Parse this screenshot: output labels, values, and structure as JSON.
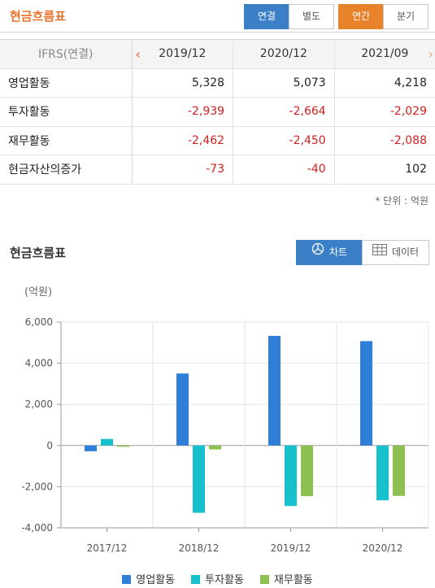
{
  "header": {
    "title": "현금흐름표",
    "consolidation_tabs": [
      {
        "label": "연결",
        "active": true
      },
      {
        "label": "별도",
        "active": false
      }
    ],
    "period_tabs": [
      {
        "label": "연간",
        "active": true
      },
      {
        "label": "분기",
        "active": false
      }
    ]
  },
  "table": {
    "row_header": "IFRS(연결)",
    "columns": [
      "2019/12",
      "2020/12",
      "2021/09"
    ],
    "rows": [
      {
        "label": "영업활동",
        "values": [
          "5,328",
          "5,073",
          "4,218"
        ]
      },
      {
        "label": "투자활동",
        "values": [
          "-2,939",
          "-2,664",
          "-2,029"
        ]
      },
      {
        "label": "재무활동",
        "values": [
          "-2,462",
          "-2,450",
          "-2,088"
        ]
      },
      {
        "label": "현금자산의증가",
        "values": [
          "-73",
          "-40",
          "102"
        ]
      }
    ],
    "unit_note": "* 단위 : 억원"
  },
  "chart_section": {
    "title": "현금흐름표",
    "view_tabs": [
      {
        "label": "차트",
        "icon": "pie-chart-icon",
        "active": true
      },
      {
        "label": "데이터",
        "icon": "table-grid-icon",
        "active": false
      }
    ]
  },
  "chart_data": {
    "type": "bar",
    "ylabel": "(억원)",
    "ylim": [
      -4000,
      6000
    ],
    "yticks": [
      6000,
      4000,
      2000,
      0,
      -2000,
      -4000
    ],
    "ytick_labels": [
      "6,000",
      "4,000",
      "2,000",
      "0",
      "-2,000",
      "-4,000"
    ],
    "categories": [
      "2017/12",
      "2018/12",
      "2019/12",
      "2020/12"
    ],
    "grid": true,
    "legend": "bottom",
    "series": [
      {
        "name": "영업활동",
        "color": "#2f7fd9",
        "values": [
          -280,
          3500,
          5328,
          5073
        ]
      },
      {
        "name": "투자활동",
        "color": "#16c0cd",
        "values": [
          320,
          -3270,
          -2939,
          -2664
        ]
      },
      {
        "name": "재무활동",
        "color": "#8cc152",
        "values": [
          -60,
          -190,
          -2462,
          -2450
        ]
      }
    ]
  }
}
